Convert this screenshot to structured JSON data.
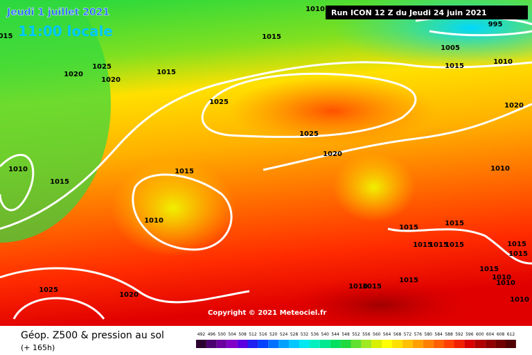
{
  "header": {
    "date": "Jeudi 1 juillet 2021",
    "time": "11:00 locale",
    "run": "Run ICON 12 Z du Jeudi 24 juin 2021"
  },
  "isobar_labels": [
    "1010",
    "995",
    "015",
    "1015",
    "1005",
    "1010",
    "1015",
    "1020",
    "1025",
    "1020",
    "1015",
    "1025",
    "1020",
    "1025",
    "1020",
    "1010",
    "1015",
    "1015",
    "1010",
    "1010",
    "1015",
    "1015",
    "1015",
    "1015",
    "1015",
    "1015",
    "1015",
    "1015",
    "1010",
    "1010",
    "1025",
    "1020",
    "1010",
    "1015",
    "1015",
    "1010"
  ],
  "copyright": "Copyright © 2021 Meteociel.fr",
  "footer": {
    "title": "Géop. Z500 & pression au sol",
    "lead": "(+ 165h)"
  },
  "scale": {
    "labels": [
      492,
      496,
      500,
      504,
      508,
      512,
      516,
      520,
      524,
      528,
      532,
      536,
      540,
      544,
      548,
      552,
      556,
      560,
      564,
      568,
      572,
      576,
      580,
      584,
      588,
      592,
      596,
      600,
      604,
      608,
      612
    ],
    "colors": [
      "#2b0030",
      "#4b0070",
      "#6a00a0",
      "#8000c8",
      "#5a00e0",
      "#2020f0",
      "#0040ff",
      "#0070ff",
      "#00a0ff",
      "#00c8ff",
      "#00e8f0",
      "#00f0c0",
      "#00e890",
      "#00e060",
      "#20d840",
      "#60e030",
      "#a0e820",
      "#d8f000",
      "#ffff00",
      "#ffe000",
      "#ffc000",
      "#ffa000",
      "#ff8000",
      "#ff6000",
      "#ff4000",
      "#f02000",
      "#d80000",
      "#b00000",
      "#900000",
      "#700000",
      "#500000"
    ]
  }
}
